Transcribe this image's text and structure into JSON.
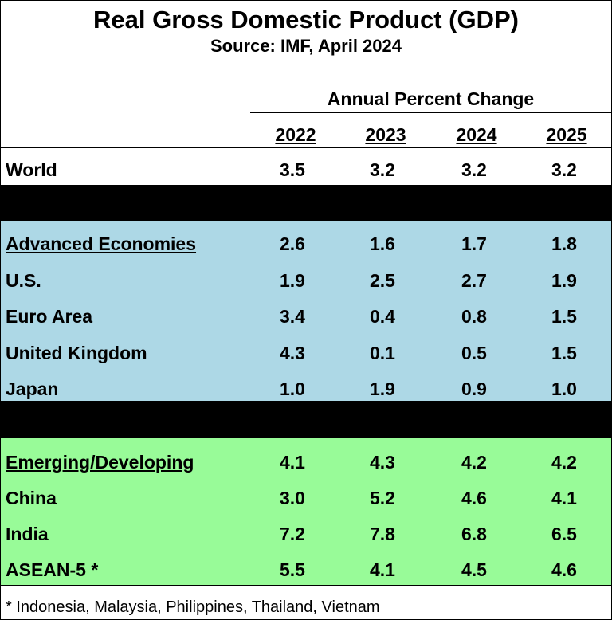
{
  "chart_data": {
    "type": "table",
    "title": "Real Gross Domestic Product (GDP)",
    "subtitle": "Source:  IMF, April 2024",
    "column_group_label": "Annual Percent Change",
    "columns": [
      "2022",
      "2023",
      "2024",
      "2025"
    ],
    "groups": [
      {
        "name": "World",
        "background": "#ffffff",
        "rows": [
          {
            "label": "World",
            "heading": false,
            "values": [
              "3.5",
              "3.2",
              "3.2",
              "3.2"
            ]
          }
        ]
      },
      {
        "name": "Advanced Economies",
        "background": "#add8e6",
        "rows": [
          {
            "label": "Advanced Economies",
            "heading": true,
            "values": [
              "2.6",
              "1.6",
              "1.7",
              "1.8"
            ]
          },
          {
            "label": "U.S.",
            "heading": false,
            "values": [
              "1.9",
              "2.5",
              "2.7",
              "1.9"
            ]
          },
          {
            "label": "Euro Area",
            "heading": false,
            "values": [
              "3.4",
              "0.4",
              "0.8",
              "1.5"
            ]
          },
          {
            "label": "United Kingdom",
            "heading": false,
            "values": [
              "4.3",
              "0.1",
              "0.5",
              "1.5"
            ]
          },
          {
            "label": "Japan",
            "heading": false,
            "values": [
              "1.0",
              "1.9",
              "0.9",
              "1.0"
            ]
          }
        ]
      },
      {
        "name": "Emerging/Developing",
        "background": "#98fb98",
        "rows": [
          {
            "label": "Emerging/Developing",
            "heading": true,
            "values": [
              "4.1",
              "4.3",
              "4.2",
              "4.2"
            ]
          },
          {
            "label": "China",
            "heading": false,
            "values": [
              "3.0",
              "5.2",
              "4.6",
              "4.1"
            ]
          },
          {
            "label": "India",
            "heading": false,
            "values": [
              "7.2",
              "7.8",
              "6.8",
              "6.5"
            ]
          },
          {
            "label": "ASEAN-5 *",
            "heading": false,
            "values": [
              "5.5",
              "4.1",
              "4.5",
              "4.6"
            ]
          }
        ]
      }
    ],
    "separator_color": "#000000",
    "footnote": "* Indonesia, Malaysia, Philippines, Thailand, Vietnam"
  }
}
